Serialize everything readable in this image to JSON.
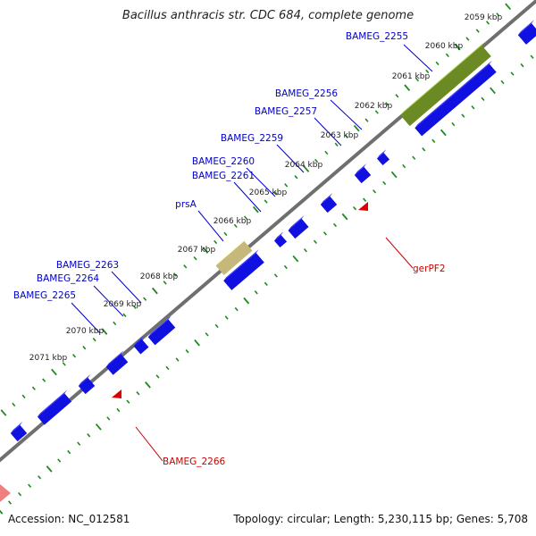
{
  "title": "Bacillus anthracis str. CDC 684, complete genome",
  "accession": "Accession: NC_012581",
  "summary": "Topology: circular; Length: 5,230,115 bp; Genes: 5,708",
  "colors": {
    "backbone": "#6f6f6f",
    "tick": "#1e8a1e",
    "forward_gene": "#1010e0",
    "reverse_gene": "#dd0000",
    "forward_label": "#0000cc",
    "reverse_label": "#cc0000",
    "highlight_dark": "#6b8a23",
    "highlight_light": "#c6b87a",
    "offscreen_gene": "#f08080"
  },
  "scale_labels": [
    {
      "text": "2059 kbp",
      "t": 0.025
    },
    {
      "text": "2060 kbp",
      "t": 0.09
    },
    {
      "text": "2061 kbp",
      "t": 0.14
    },
    {
      "text": "2062 kbp",
      "t": 0.225
    },
    {
      "text": "2063 kbp",
      "t": 0.295
    },
    {
      "text": "2064 kbp",
      "t": 0.35
    },
    {
      "text": "2065 kbp",
      "t": 0.42
    },
    {
      "text": "2066 kbp",
      "t": 0.475
    },
    {
      "text": "2067 kbp",
      "t": 0.535
    },
    {
      "text": "2068 kbp",
      "t": 0.625
    },
    {
      "text": "2069 kbp",
      "t": 0.695
    },
    {
      "text": "2070 kbp",
      "t": 0.76
    },
    {
      "text": "2071 kbp",
      "t": 0.83
    }
  ],
  "forward_labels": [
    {
      "text": "BAMEG_2255"
    },
    {
      "text": "BAMEG_2256"
    },
    {
      "text": "BAMEG_2257"
    },
    {
      "text": "BAMEG_2259"
    },
    {
      "text": "BAMEG_2260"
    },
    {
      "text": "BAMEG_2261"
    },
    {
      "text": "prsA"
    },
    {
      "text": "BAMEG_2263"
    },
    {
      "text": "BAMEG_2264"
    },
    {
      "text": "BAMEG_2265"
    }
  ],
  "reverse_labels": [
    {
      "text": "gerPF2"
    },
    {
      "text": "BAMEG_2266"
    }
  ]
}
